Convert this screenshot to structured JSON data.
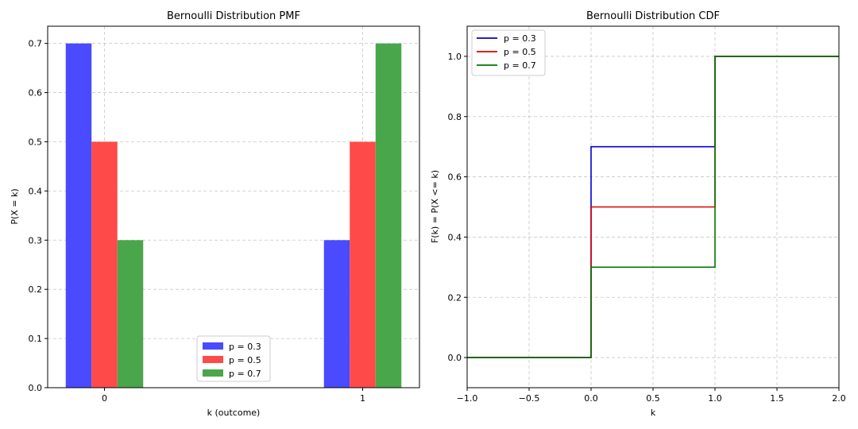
{
  "chart_data": [
    {
      "type": "bar",
      "title": "Bernoulli Distribution PMF",
      "xlabel": "k (outcome)",
      "ylabel": "P(X = k)",
      "categories": [
        "0",
        "1"
      ],
      "ylim": [
        0,
        0.735
      ],
      "yticks": [
        0.0,
        0.1,
        0.2,
        0.3,
        0.4,
        0.5,
        0.6,
        0.7
      ],
      "ytick_labels": [
        "0.0",
        "0.1",
        "0.2",
        "0.3",
        "0.4",
        "0.5",
        "0.6",
        "0.7"
      ],
      "grid": true,
      "legend_position": "lower-center",
      "series": [
        {
          "name": "p = 0.3",
          "color": "#4a4aff",
          "values": [
            0.7,
            0.3
          ]
        },
        {
          "name": "p = 0.5",
          "color": "#ff4a4a",
          "values": [
            0.5,
            0.5
          ]
        },
        {
          "name": "p = 0.7",
          "color": "#4aa64a",
          "values": [
            0.3,
            0.7
          ]
        }
      ]
    },
    {
      "type": "line",
      "subtype": "step",
      "title": "Bernoulli Distribution CDF",
      "xlabel": "k",
      "ylabel": "F(k) = P(X <= k)",
      "xlim": [
        -1.0,
        2.0
      ],
      "ylim": [
        -0.1,
        1.1
      ],
      "xticks": [
        -1.0,
        -0.5,
        0.0,
        0.5,
        1.0,
        1.5,
        2.0
      ],
      "xtick_labels": [
        "−1.0",
        "−0.5",
        "0.0",
        "0.5",
        "1.0",
        "1.5",
        "2.0"
      ],
      "yticks": [
        0.0,
        0.2,
        0.4,
        0.6,
        0.8,
        1.0
      ],
      "ytick_labels": [
        "0.0",
        "0.2",
        "0.4",
        "0.6",
        "0.8",
        "1.0"
      ],
      "grid": true,
      "legend_position": "upper-left",
      "series": [
        {
          "name": "p = 0.3",
          "color": "#0000cc",
          "x": [
            -1.0,
            0.0,
            0.0,
            1.0,
            1.0,
            2.0
          ],
          "y": [
            0.0,
            0.0,
            0.7,
            0.7,
            1.0,
            1.0
          ]
        },
        {
          "name": "p = 0.5",
          "color": "#dd0000",
          "x": [
            -1.0,
            0.0,
            0.0,
            1.0,
            1.0,
            2.0
          ],
          "y": [
            0.0,
            0.0,
            0.5,
            0.5,
            1.0,
            1.0
          ]
        },
        {
          "name": "p = 0.7",
          "color": "#007700",
          "x": [
            -1.0,
            0.0,
            0.0,
            1.0,
            1.0,
            2.0
          ],
          "y": [
            0.0,
            0.0,
            0.3,
            0.3,
            1.0,
            1.0
          ]
        }
      ]
    }
  ]
}
